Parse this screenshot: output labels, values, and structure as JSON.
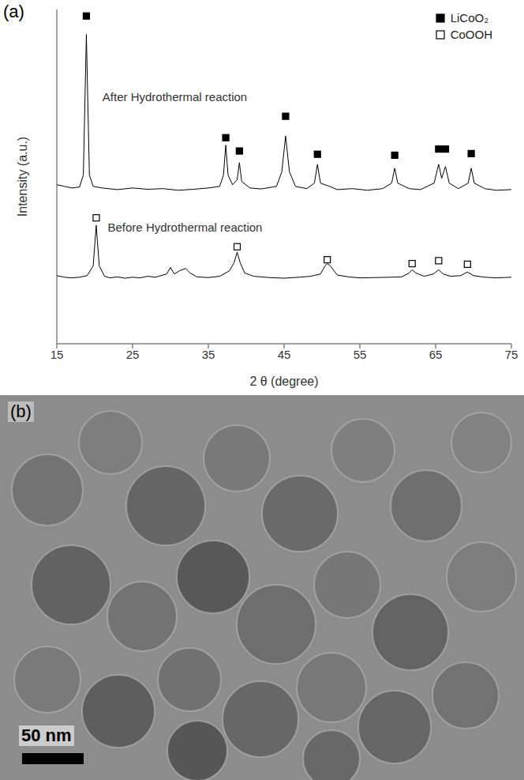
{
  "chart_data": {
    "type": "line",
    "label": "(a)",
    "x_label": "2 θ (degree)",
    "y_label": "Intensity (a.u.)",
    "xlim": [
      15,
      75
    ],
    "xticks": [
      15,
      25,
      35,
      45,
      55,
      65,
      75
    ],
    "ylim": [
      0,
      103
    ],
    "yticks": [],
    "tick_labels": "x",
    "grid": false,
    "legend": "top-right",
    "annotations": [
      {
        "text": "After Hydrothermal reaction",
        "x": 20.5,
        "y": 76
      },
      {
        "text": "Before Hydrothermal reaction",
        "x": 21.2,
        "y": 35.8
      }
    ],
    "series": [
      {
        "type": "line",
        "color": "#000000",
        "x": [
          15,
          16,
          17,
          18,
          18.5,
          18.9,
          19.3,
          19.8,
          21,
          23,
          25,
          27,
          29,
          31,
          33,
          35,
          36.5,
          37,
          37.3,
          37.6,
          38.2,
          38.8,
          39.1,
          39.4,
          40.5,
          42,
          44,
          44.7,
          45.2,
          45.7,
          46.5,
          48,
          49,
          49.4,
          49.8,
          51,
          52,
          54,
          56,
          58,
          59.2,
          59.6,
          60,
          61.5,
          63,
          64.8,
          65.4,
          65.8,
          66.3,
          66.8,
          68,
          69.3,
          69.7,
          70.1,
          71.5,
          73,
          75
        ],
        "values": [
          49,
          48.5,
          48,
          48.3,
          52,
          95.3,
          52,
          48.5,
          48,
          47.5,
          48,
          47.6,
          47.8,
          47.3,
          47.6,
          48,
          48.5,
          52,
          61.2,
          52,
          49,
          50.5,
          55.8,
          50,
          48,
          47.7,
          48.5,
          53,
          64,
          53,
          48.5,
          47.8,
          49.5,
          55.3,
          49.5,
          48.5,
          47.5,
          47.8,
          47.3,
          47.8,
          49.5,
          54.1,
          49.5,
          47.8,
          47.5,
          49.5,
          55.3,
          51,
          54.6,
          49.5,
          47.8,
          49.5,
          54.1,
          49.5,
          47.8,
          47.3,
          47.5
        ]
      },
      {
        "type": "line",
        "color": "#000000",
        "x": [
          15,
          16,
          17,
          18,
          19,
          19.8,
          20.2,
          20.6,
          21.3,
          22,
          23,
          24,
          25,
          26,
          27,
          28,
          29.5,
          30,
          30.5,
          31.2,
          32,
          32.6,
          33.5,
          35,
          36.5,
          37.8,
          38.4,
          38.8,
          39.2,
          39.8,
          41,
          43,
          45,
          47,
          48.5,
          49.8,
          50.4,
          50.7,
          51.1,
          52,
          53.5,
          55,
          57,
          59,
          60.5,
          61.5,
          61.9,
          62.4,
          63.5,
          64.7,
          65.4,
          66,
          67,
          68.3,
          69.2,
          70,
          71.5,
          73,
          75
        ],
        "values": [
          21,
          20.5,
          20.3,
          20.5,
          21,
          24,
          36.5,
          24,
          20.8,
          20.3,
          20.6,
          20.2,
          20.5,
          20.3,
          20.8,
          20.5,
          21.5,
          23.5,
          21.5,
          22.5,
          23.2,
          21.8,
          20.6,
          20.4,
          20.8,
          22.5,
          25,
          28.2,
          25,
          21.8,
          20.8,
          20.4,
          20.2,
          20.5,
          20.8,
          21.5,
          24,
          24.7,
          24,
          21.2,
          20.6,
          20.3,
          20.4,
          20.5,
          20.6,
          21.8,
          22.8,
          21.8,
          20.8,
          21.5,
          22.8,
          21.5,
          20.8,
          21,
          22.1,
          21,
          20.5,
          20.3,
          20.5
        ]
      },
      {
        "name": "LiCoO₂",
        "type": "scatter",
        "marker": "square",
        "color": "#000000",
        "x": [
          18.9,
          37.3,
          39.1,
          45.2,
          49.4,
          59.6,
          65.4,
          66.3,
          69.7
        ],
        "values": [
          101,
          63.5,
          59.4,
          70.1,
          58.4,
          58.1,
          60,
          60,
          58.6
        ]
      },
      {
        "name": "CoOOH",
        "type": "scatter",
        "marker": "square_open",
        "color": "#000000",
        "x": [
          20.2,
          38.8,
          50.7,
          61.9,
          65.4,
          69.2
        ],
        "values": [
          38.8,
          29.9,
          25.9,
          24.7,
          25.6,
          24.5
        ]
      }
    ]
  },
  "micrograph": {
    "label": "(b)",
    "scale_bar": "50 nm"
  }
}
